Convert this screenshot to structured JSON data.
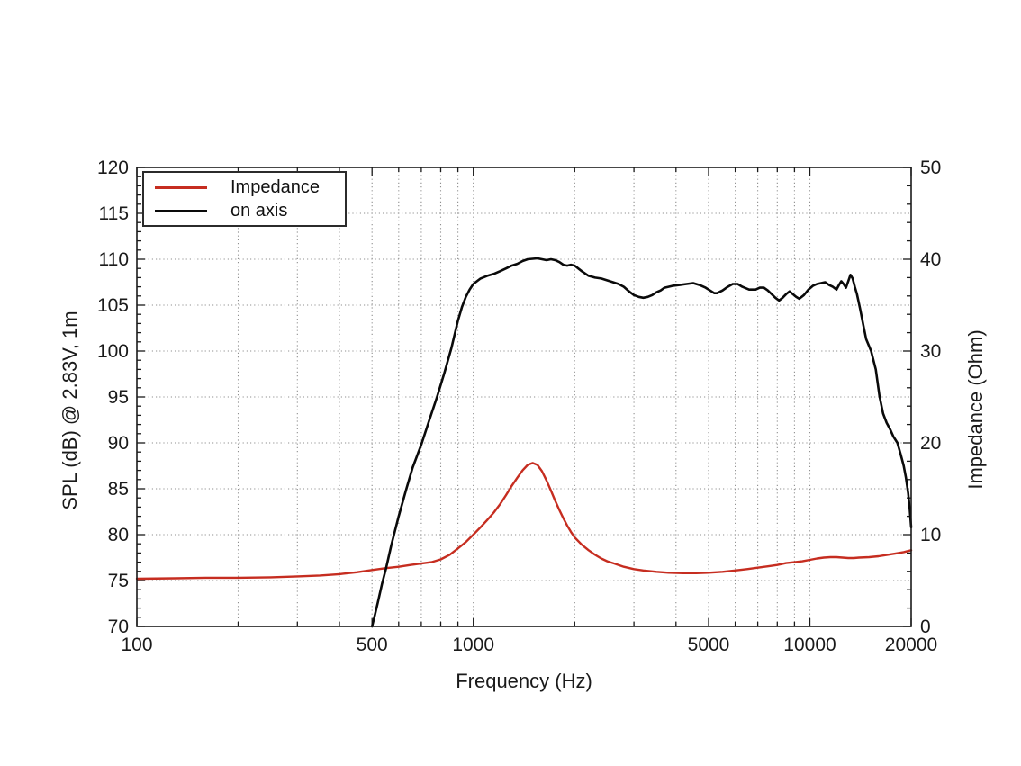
{
  "chart_data": {
    "type": "line",
    "xlabel": "Frequency (Hz)",
    "ylabel_left": "SPL (dB) @ 2.83V, 1m",
    "ylabel_right": "Impedance (Ohm)",
    "x_scale": "log",
    "xlim": [
      100,
      20000
    ],
    "ylim_left": [
      70,
      120
    ],
    "ylim_right": [
      0,
      50
    ],
    "x_major_ticks": [
      100,
      500,
      1000,
      5000,
      10000,
      20000
    ],
    "x_all_ticks": [
      100,
      200,
      300,
      400,
      500,
      600,
      700,
      800,
      900,
      1000,
      2000,
      3000,
      4000,
      5000,
      6000,
      7000,
      8000,
      9000,
      10000,
      20000
    ],
    "x_gridlines": [
      200,
      300,
      400,
      500,
      600,
      700,
      800,
      900,
      1000,
      2000,
      3000,
      4000,
      5000,
      6000,
      7000,
      8000,
      9000,
      10000
    ],
    "y_left_major_ticks": [
      70,
      75,
      80,
      85,
      90,
      95,
      100,
      105,
      110,
      115,
      120
    ],
    "y_left_minor_step": 1,
    "y_left_gridlines": [
      75,
      80,
      85,
      90,
      95,
      100,
      105,
      110,
      115
    ],
    "y_right_major_ticks": [
      0,
      10,
      20,
      30,
      40,
      50
    ],
    "y_right_minor_step": 2,
    "grid_color": "#8f8f8f",
    "axis_color": "#1a1a1a",
    "legend": [
      {
        "label": "Impedance",
        "color": "#c62d20"
      },
      {
        "label": "on axis",
        "color": "#0a0a0a"
      }
    ],
    "series": [
      {
        "name": "Impedance",
        "axis": "right",
        "color": "#c62d20",
        "width": 2.4,
        "points": [
          [
            100,
            5.2
          ],
          [
            130,
            5.25
          ],
          [
            160,
            5.3
          ],
          [
            200,
            5.3
          ],
          [
            250,
            5.35
          ],
          [
            300,
            5.45
          ],
          [
            350,
            5.55
          ],
          [
            400,
            5.7
          ],
          [
            450,
            5.9
          ],
          [
            500,
            6.15
          ],
          [
            550,
            6.35
          ],
          [
            600,
            6.5
          ],
          [
            650,
            6.7
          ],
          [
            700,
            6.85
          ],
          [
            750,
            7.0
          ],
          [
            800,
            7.3
          ],
          [
            850,
            7.8
          ],
          [
            900,
            8.5
          ],
          [
            950,
            9.2
          ],
          [
            1000,
            10.0
          ],
          [
            1050,
            10.8
          ],
          [
            1100,
            11.6
          ],
          [
            1150,
            12.4
          ],
          [
            1200,
            13.3
          ],
          [
            1250,
            14.3
          ],
          [
            1300,
            15.3
          ],
          [
            1350,
            16.2
          ],
          [
            1400,
            17.0
          ],
          [
            1450,
            17.6
          ],
          [
            1500,
            17.8
          ],
          [
            1550,
            17.6
          ],
          [
            1600,
            16.9
          ],
          [
            1650,
            15.9
          ],
          [
            1700,
            14.8
          ],
          [
            1750,
            13.7
          ],
          [
            1800,
            12.7
          ],
          [
            1850,
            11.8
          ],
          [
            1900,
            11.0
          ],
          [
            1950,
            10.3
          ],
          [
            2000,
            9.7
          ],
          [
            2100,
            8.9
          ],
          [
            2200,
            8.3
          ],
          [
            2300,
            7.8
          ],
          [
            2400,
            7.4
          ],
          [
            2500,
            7.1
          ],
          [
            2600,
            6.9
          ],
          [
            2800,
            6.5
          ],
          [
            3000,
            6.25
          ],
          [
            3200,
            6.1
          ],
          [
            3500,
            5.95
          ],
          [
            3800,
            5.85
          ],
          [
            4200,
            5.8
          ],
          [
            4600,
            5.8
          ],
          [
            5000,
            5.85
          ],
          [
            5500,
            5.95
          ],
          [
            6000,
            6.1
          ],
          [
            6500,
            6.25
          ],
          [
            7000,
            6.4
          ],
          [
            7500,
            6.55
          ],
          [
            8000,
            6.7
          ],
          [
            8500,
            6.9
          ],
          [
            9000,
            7.0
          ],
          [
            9500,
            7.1
          ],
          [
            10000,
            7.25
          ],
          [
            10500,
            7.4
          ],
          [
            11000,
            7.5
          ],
          [
            11500,
            7.55
          ],
          [
            12000,
            7.55
          ],
          [
            12500,
            7.5
          ],
          [
            13000,
            7.45
          ],
          [
            13500,
            7.45
          ],
          [
            14000,
            7.5
          ],
          [
            15000,
            7.55
          ],
          [
            16000,
            7.65
          ],
          [
            17000,
            7.8
          ],
          [
            18000,
            7.95
          ],
          [
            19000,
            8.1
          ],
          [
            20000,
            8.3
          ]
        ]
      },
      {
        "name": "on axis",
        "axis": "left",
        "color": "#0a0a0a",
        "width": 2.6,
        "points": [
          [
            500,
            70
          ],
          [
            510,
            71.3
          ],
          [
            520,
            72.6
          ],
          [
            535,
            74.6
          ],
          [
            550,
            76.3
          ],
          [
            570,
            78.8
          ],
          [
            600,
            82.0
          ],
          [
            630,
            84.8
          ],
          [
            660,
            87.3
          ],
          [
            700,
            89.8
          ],
          [
            740,
            92.5
          ],
          [
            780,
            95.0
          ],
          [
            820,
            97.6
          ],
          [
            860,
            100.3
          ],
          [
            900,
            103.3
          ],
          [
            925,
            104.8
          ],
          [
            950,
            105.9
          ],
          [
            975,
            106.7
          ],
          [
            1000,
            107.3
          ],
          [
            1050,
            107.9
          ],
          [
            1100,
            108.2
          ],
          [
            1150,
            108.4
          ],
          [
            1200,
            108.7
          ],
          [
            1250,
            109.0
          ],
          [
            1300,
            109.3
          ],
          [
            1350,
            109.5
          ],
          [
            1400,
            109.8
          ],
          [
            1450,
            110.0
          ],
          [
            1500,
            110.05
          ],
          [
            1550,
            110.1
          ],
          [
            1600,
            110.0
          ],
          [
            1650,
            109.9
          ],
          [
            1700,
            110.0
          ],
          [
            1750,
            109.9
          ],
          [
            1800,
            109.7
          ],
          [
            1850,
            109.4
          ],
          [
            1900,
            109.3
          ],
          [
            1950,
            109.4
          ],
          [
            2000,
            109.3
          ],
          [
            2100,
            108.7
          ],
          [
            2200,
            108.2
          ],
          [
            2300,
            108.0
          ],
          [
            2400,
            107.9
          ],
          [
            2500,
            107.7
          ],
          [
            2600,
            107.5
          ],
          [
            2700,
            107.3
          ],
          [
            2800,
            107.0
          ],
          [
            2900,
            106.5
          ],
          [
            3000,
            106.1
          ],
          [
            3100,
            105.9
          ],
          [
            3200,
            105.8
          ],
          [
            3300,
            105.9
          ],
          [
            3400,
            106.1
          ],
          [
            3500,
            106.4
          ],
          [
            3600,
            106.6
          ],
          [
            3700,
            106.9
          ],
          [
            3900,
            107.1
          ],
          [
            4100,
            107.2
          ],
          [
            4300,
            107.3
          ],
          [
            4500,
            107.4
          ],
          [
            4700,
            107.2
          ],
          [
            4900,
            106.9
          ],
          [
            5100,
            106.5
          ],
          [
            5200,
            106.3
          ],
          [
            5300,
            106.3
          ],
          [
            5500,
            106.6
          ],
          [
            5700,
            107.0
          ],
          [
            5900,
            107.3
          ],
          [
            6100,
            107.3
          ],
          [
            6300,
            107.0
          ],
          [
            6600,
            106.7
          ],
          [
            6900,
            106.7
          ],
          [
            7100,
            106.9
          ],
          [
            7300,
            106.9
          ],
          [
            7500,
            106.6
          ],
          [
            7700,
            106.2
          ],
          [
            7900,
            105.8
          ],
          [
            8100,
            105.5
          ],
          [
            8300,
            105.8
          ],
          [
            8500,
            106.2
          ],
          [
            8700,
            106.5
          ],
          [
            8900,
            106.2
          ],
          [
            9100,
            105.9
          ],
          [
            9300,
            105.7
          ],
          [
            9600,
            106.1
          ],
          [
            9900,
            106.7
          ],
          [
            10200,
            107.1
          ],
          [
            10500,
            107.3
          ],
          [
            10800,
            107.4
          ],
          [
            11100,
            107.5
          ],
          [
            11400,
            107.2
          ],
          [
            11700,
            107.0
          ],
          [
            12000,
            106.7
          ],
          [
            12200,
            107.2
          ],
          [
            12400,
            107.6
          ],
          [
            12600,
            107.3
          ],
          [
            12800,
            106.9
          ],
          [
            13000,
            107.6
          ],
          [
            13200,
            108.3
          ],
          [
            13400,
            107.9
          ],
          [
            13600,
            107.0
          ],
          [
            13800,
            106.2
          ],
          [
            14100,
            104.6
          ],
          [
            14400,
            102.9
          ],
          [
            14700,
            101.3
          ],
          [
            15200,
            100.0
          ],
          [
            15700,
            98.0
          ],
          [
            16100,
            95.1
          ],
          [
            16500,
            93.2
          ],
          [
            16900,
            92.2
          ],
          [
            17300,
            91.5
          ],
          [
            17700,
            90.7
          ],
          [
            18200,
            90.0
          ],
          [
            18600,
            88.8
          ],
          [
            19000,
            87.5
          ],
          [
            19300,
            86.2
          ],
          [
            19600,
            84.5
          ],
          [
            19800,
            82.8
          ],
          [
            20000,
            80.8
          ]
        ]
      }
    ]
  }
}
